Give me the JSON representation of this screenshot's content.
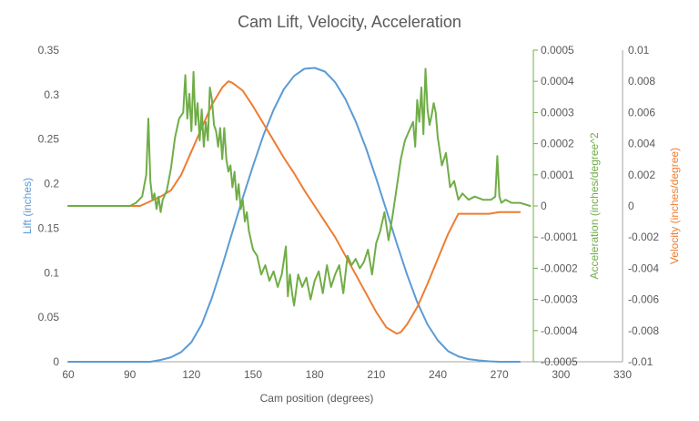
{
  "chart_data": {
    "type": "line",
    "title": "Cam Lift, Velocity, Acceleration",
    "xlabel": "Cam position (degrees)",
    "xlim": [
      60,
      330
    ],
    "x_ticks": [
      60,
      90,
      120,
      150,
      180,
      210,
      240,
      270,
      300,
      330
    ],
    "colors": {
      "lift": "#5B9BD5",
      "acceleration": "#70AD47",
      "velocity": "#ED7D31",
      "axis_gray": "#A6A6A6",
      "tick_gray": "#595959"
    },
    "axes": {
      "lift": {
        "label": "Lift (inches)",
        "range": [
          0,
          0.35
        ],
        "ticks": [
          "0",
          "0.05",
          "0.1",
          "0.15",
          "0.2",
          "0.25",
          "0.3",
          "0.35"
        ]
      },
      "acceleration": {
        "label": "Acceleration (inches/degree^2",
        "range": [
          -0.0005,
          0.0005
        ],
        "ticks": [
          "-0.0005",
          "-0.0004",
          "-0.0003",
          "-0.0002",
          "-0.0001",
          "0",
          "0.0001",
          "0.0002",
          "0.0003",
          "0.0004",
          "0.0005"
        ]
      },
      "velocity": {
        "label": "Velocity (inches/degree)",
        "range": [
          -0.01,
          0.01
        ],
        "ticks": [
          "-0.01",
          "-0.008",
          "-0.006",
          "-0.004",
          "-0.002",
          "0",
          "0.002",
          "0.004",
          "0.006",
          "0.008",
          "0.01"
        ]
      }
    },
    "series": [
      {
        "name": "Lift",
        "axis": "lift",
        "x": [
          60,
          80,
          100,
          105,
          110,
          115,
          120,
          125,
          130,
          135,
          140,
          145,
          150,
          155,
          160,
          165,
          170,
          175,
          180,
          185,
          190,
          195,
          200,
          205,
          210,
          215,
          220,
          225,
          230,
          235,
          240,
          245,
          250,
          255,
          260,
          265,
          270,
          280
        ],
        "values": [
          0,
          0,
          0,
          0.002,
          0.005,
          0.011,
          0.022,
          0.042,
          0.072,
          0.108,
          0.146,
          0.184,
          0.22,
          0.254,
          0.283,
          0.306,
          0.321,
          0.329,
          0.33,
          0.326,
          0.314,
          0.295,
          0.27,
          0.24,
          0.206,
          0.17,
          0.133,
          0.098,
          0.067,
          0.042,
          0.024,
          0.012,
          0.006,
          0.003,
          0.0015,
          0.0005,
          0,
          0
        ]
      },
      {
        "name": "Velocity",
        "axis": "velocity",
        "x": [
          60,
          95,
          100,
          105,
          110,
          115,
          120,
          125,
          130,
          135,
          138,
          140,
          145,
          150,
          155,
          160,
          165,
          170,
          175,
          180,
          185,
          190,
          195,
          200,
          205,
          210,
          215,
          220,
          222,
          225,
          230,
          235,
          240,
          245,
          250,
          255,
          260,
          265,
          270,
          280
        ],
        "values": [
          0,
          0,
          0.0003,
          0.0006,
          0.001,
          0.002,
          0.0035,
          0.005,
          0.0065,
          0.0076,
          0.008,
          0.0079,
          0.0074,
          0.0064,
          0.0053,
          0.0042,
          0.0031,
          0.0021,
          0.001,
          0,
          -0.001,
          -0.002,
          -0.0032,
          -0.0044,
          -0.0056,
          -0.0068,
          -0.0078,
          -0.0082,
          -0.0081,
          -0.0076,
          -0.0065,
          -0.005,
          -0.0034,
          -0.0018,
          -0.0005,
          -0.0005,
          -0.0005,
          -0.0005,
          -0.0004,
          -0.0004
        ]
      },
      {
        "name": "Acceleration",
        "axis": "acceleration",
        "x": [
          60,
          90,
          93,
          96,
          98,
          99,
          100,
          101,
          102,
          103,
          104,
          105,
          106,
          108,
          110,
          112,
          114,
          116,
          117,
          118,
          119,
          120,
          121,
          122,
          123,
          124,
          125,
          126,
          127,
          128,
          129,
          130,
          131,
          132,
          133,
          134,
          135,
          136,
          137,
          138,
          139,
          140,
          141,
          142,
          143,
          144,
          145,
          146,
          147,
          148,
          149,
          150,
          152,
          154,
          156,
          158,
          160,
          162,
          164,
          166,
          167,
          168,
          169,
          170,
          172,
          174,
          176,
          178,
          180,
          182,
          184,
          186,
          188,
          190,
          192,
          194,
          196,
          198,
          200,
          202,
          204,
          206,
          208,
          210,
          212,
          214,
          216,
          218,
          220,
          222,
          224,
          226,
          228,
          229,
          230,
          231,
          232,
          233,
          234,
          235,
          236,
          237,
          238,
          239,
          240,
          242,
          244,
          246,
          248,
          250,
          252,
          255,
          258,
          262,
          266,
          268,
          269,
          270,
          271,
          273,
          276,
          280,
          285
        ],
        "values": [
          0,
          0,
          1e-05,
          3e-05,
          0.0001,
          0.00028,
          8e-05,
          2e-05,
          4e-05,
          -1e-05,
          3e-05,
          -2e-05,
          2e-05,
          5e-05,
          0.00012,
          0.00022,
          0.00028,
          0.0003,
          0.00042,
          0.00028,
          0.00036,
          0.00024,
          0.00043,
          0.00026,
          0.00033,
          0.00021,
          0.00031,
          0.00019,
          0.00027,
          0.00021,
          0.00038,
          0.00034,
          0.00026,
          0.00024,
          0.00019,
          0.00025,
          0.00015,
          0.00025,
          0.00015,
          0.00011,
          0.00013,
          6e-05,
          0.00011,
          2e-05,
          7e-05,
          -1e-05,
          2e-05,
          -5e-05,
          -2e-05,
          -8e-05,
          -0.00011,
          -0.00014,
          -0.00016,
          -0.00022,
          -0.00019,
          -0.00024,
          -0.00021,
          -0.00026,
          -0.00022,
          -0.00013,
          -0.00029,
          -0.00022,
          -0.00028,
          -0.00032,
          -0.00022,
          -0.00026,
          -0.00023,
          -0.0003,
          -0.00024,
          -0.00021,
          -0.00028,
          -0.00019,
          -0.00026,
          -0.00022,
          -0.00019,
          -0.00028,
          -0.00016,
          -0.00019,
          -0.00017,
          -0.0002,
          -0.00018,
          -0.00014,
          -0.00022,
          -0.00012,
          -8e-05,
          -2e-05,
          -0.00011,
          -3e-05,
          6e-05,
          0.00015,
          0.00021,
          0.00024,
          0.00027,
          0.00019,
          0.00034,
          0.00027,
          0.00038,
          0.00023,
          0.00044,
          0.00031,
          0.00026,
          0.00029,
          0.00033,
          0.0003,
          0.00022,
          0.00013,
          0.00017,
          6e-05,
          8e-05,
          2e-05,
          4e-05,
          2e-05,
          3e-05,
          2e-05,
          2e-05,
          3e-05,
          0.00016,
          3e-05,
          1e-05,
          2e-05,
          1e-05,
          1e-05,
          0
        ]
      }
    ]
  }
}
